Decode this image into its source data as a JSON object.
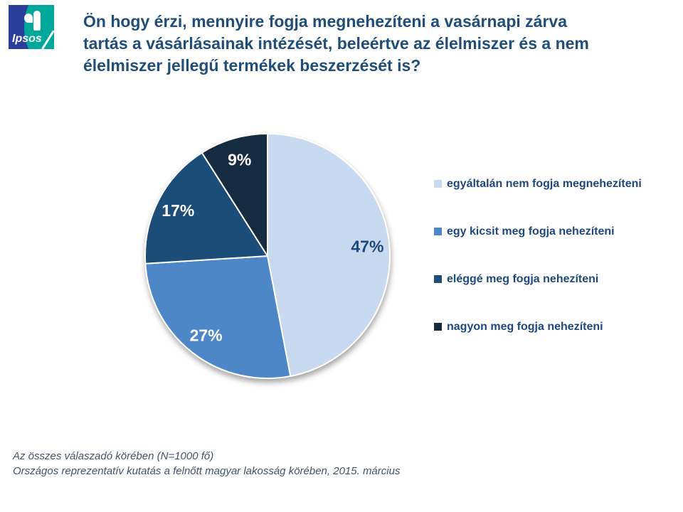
{
  "logo": {
    "text": "Ipsos",
    "blue": "#2A3F9B",
    "teal": "#00A79B"
  },
  "title": {
    "lines": [
      "Ön hogy érzi, mennyire fogja megnehezíteni a vasárnapi zárva",
      "tartás a vásárlásainak intézését, beleértve az élelmiszer és a nem",
      "élelmiszer jellegű termékek beszerzését is?"
    ],
    "color": "#1F4E79"
  },
  "chart_data": {
    "type": "pie",
    "categories": [
      "egyáltalán nem fogja megnehezíteni",
      "egy kicsit meg fogja nehezíteni",
      "eléggé meg fogja nehezíteni",
      "nagyon meg fogja nehezíteni"
    ],
    "values": [
      47,
      27,
      17,
      9
    ],
    "unit": "%",
    "colors": [
      "#C8D9F0",
      "#4E87C8",
      "#1F4E79",
      "#17293F"
    ],
    "label_colors": [
      "#1F497D",
      "#FFFFFF",
      "#FFFFFF",
      "#FFFFFF"
    ],
    "start_angle_deg": 0,
    "direction": "clockwise",
    "legend_position": "right"
  },
  "legend_text_color": "#1F497D",
  "footer": {
    "line1": "Az összes válaszadó körében (N=1000 fő)",
    "line2": "Országos reprezentatív kutatás a felnőtt magyar lakosság körében, 2015. március",
    "color": "#44546A"
  }
}
